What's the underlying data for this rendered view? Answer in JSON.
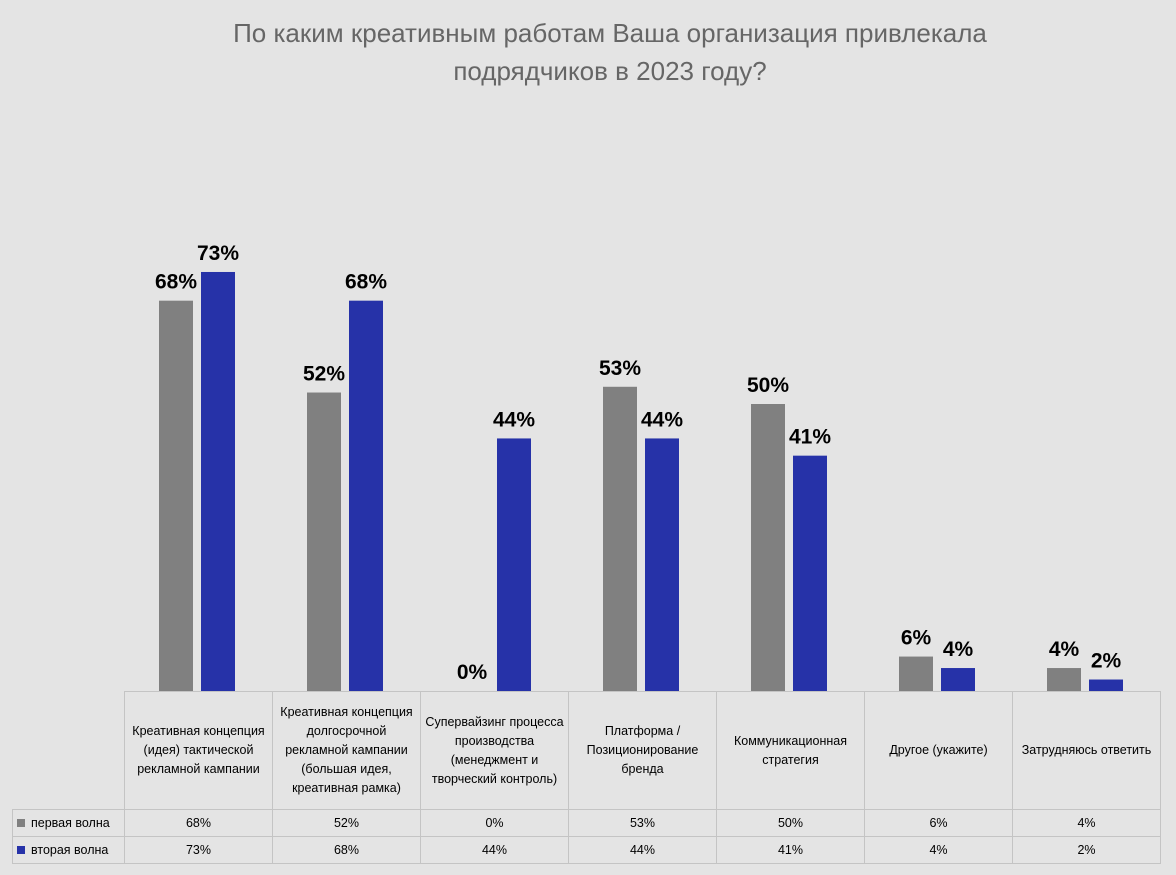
{
  "chart_data": {
    "type": "bar",
    "title": "По каким креативным работам Ваша организация привлекала подрядчиков в 2023 году?",
    "categories": [
      "Креативная концепция (идея) тактической рекламной кампании",
      "Креативная концепция долгосрочной рекламной кампании (большая идея, креативная рамка)",
      "Супервайзинг процесса производства (менеджмент и творческий контроль)",
      "Платформа / Позиционирование бренда",
      "Коммуникационная стратегия",
      "Другое (укажите)",
      "Затрудняюсь ответить"
    ],
    "series": [
      {
        "name": "первая волна",
        "color": "#808080",
        "values": [
          68,
          52,
          0,
          53,
          50,
          6,
          4
        ],
        "value_labels": [
          "68%",
          "52%",
          "0%",
          "53%",
          "50%",
          "6%",
          "4%"
        ]
      },
      {
        "name": "вторая волна",
        "color": "#2632a8",
        "values": [
          73,
          68,
          44,
          44,
          41,
          4,
          2
        ],
        "value_labels": [
          "73%",
          "68%",
          "44%",
          "44%",
          "41%",
          "4%",
          "2%"
        ]
      }
    ]
  }
}
